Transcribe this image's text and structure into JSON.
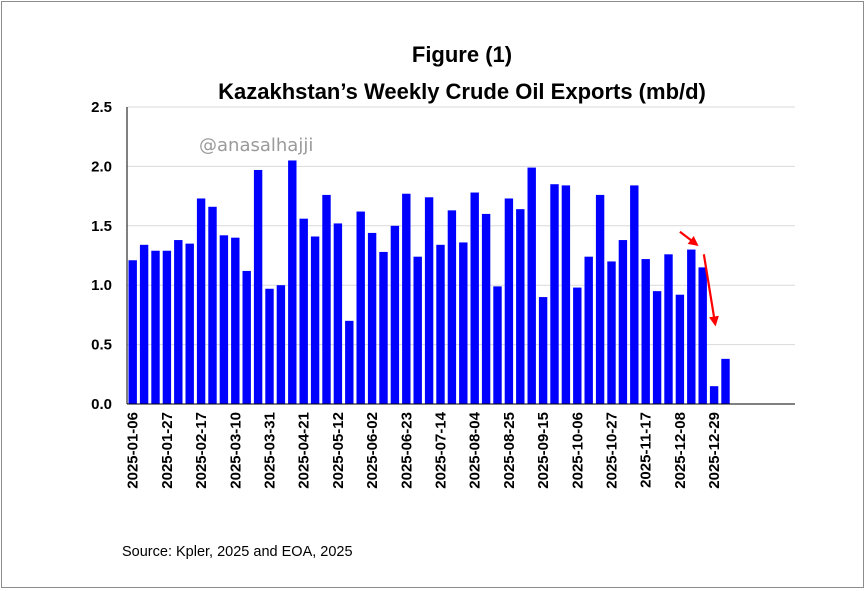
{
  "colors": {
    "bar": "#0000ff",
    "arrow": "#ff0000",
    "grid": "#d9d9d9",
    "axis": "#000000",
    "watermark": "#9a9a9a"
  },
  "chart_data": {
    "type": "bar",
    "title": "Figure (1)",
    "subtitle": "Kazakhstan’s Weekly Crude Oil Exports (mb/d)",
    "xlabel": "",
    "ylabel": "",
    "ylim": [
      0,
      2.5
    ],
    "yticks": [
      "0.0",
      "0.5",
      "1.0",
      "1.5",
      "2.0",
      "2.5"
    ],
    "grid": true,
    "legend": "none",
    "watermark": "@anasalhajji",
    "source": "Source: Kpler, 2025 and EOA, 2025",
    "x_tick_labels": [
      "2025-01-06",
      "2025-01-27",
      "2025-02-17",
      "2025-03-10",
      "2025-03-31",
      "2025-04-21",
      "2025-05-12",
      "2025-06-02",
      "2025-06-23",
      "2025-07-14",
      "2025-08-04",
      "2025-08-25",
      "2025-09-15",
      "2025-10-06",
      "2025-10-27",
      "2025-11-17",
      "2025-12-08",
      "2025-12-29"
    ],
    "categories": [
      "2025-01-06",
      "2025-01-13",
      "2025-01-20",
      "2025-01-27",
      "2025-02-03",
      "2025-02-10",
      "2025-02-17",
      "2025-02-24",
      "2025-03-03",
      "2025-03-10",
      "2025-03-17",
      "2025-03-24",
      "2025-03-31",
      "2025-04-07",
      "2025-04-14",
      "2025-04-21",
      "2025-04-28",
      "2025-05-05",
      "2025-05-12",
      "2025-05-19",
      "2025-05-26",
      "2025-06-02",
      "2025-06-09",
      "2025-06-16",
      "2025-06-23",
      "2025-06-30",
      "2025-07-07",
      "2025-07-14",
      "2025-07-21",
      "2025-07-28",
      "2025-08-04",
      "2025-08-11",
      "2025-08-18",
      "2025-08-25",
      "2025-09-01",
      "2025-09-08",
      "2025-09-15",
      "2025-09-22",
      "2025-09-29",
      "2025-10-06",
      "2025-10-13",
      "2025-10-20",
      "2025-10-27",
      "2025-11-03",
      "2025-11-10",
      "2025-11-17",
      "2025-11-24",
      "2025-12-01",
      "2025-12-08",
      "2025-12-15",
      "2025-12-22",
      "2025-12-29",
      "2026-01-05"
    ],
    "values": [
      1.21,
      1.34,
      1.29,
      1.29,
      1.38,
      1.35,
      1.73,
      1.66,
      1.42,
      1.4,
      1.12,
      1.97,
      0.97,
      1.0,
      2.05,
      1.56,
      1.41,
      1.76,
      1.52,
      0.7,
      1.62,
      1.44,
      1.28,
      1.5,
      1.77,
      1.24,
      1.74,
      1.34,
      1.63,
      1.36,
      1.78,
      1.6,
      0.99,
      1.73,
      1.64,
      1.99,
      0.9,
      1.85,
      1.84,
      0.98,
      1.24,
      1.76,
      1.2,
      1.38,
      1.84,
      1.22,
      0.95,
      1.26,
      0.92,
      1.3,
      1.15,
      0.15,
      0.38
    ],
    "annotations": [
      {
        "type": "arrow",
        "description": "decline arrow",
        "from": [
          48.5,
          1.45
        ],
        "to": [
          50.0,
          1.34
        ]
      },
      {
        "type": "arrow",
        "description": "decline arrow",
        "from": [
          50.6,
          1.26
        ],
        "to": [
          51.6,
          0.67
        ]
      }
    ]
  }
}
